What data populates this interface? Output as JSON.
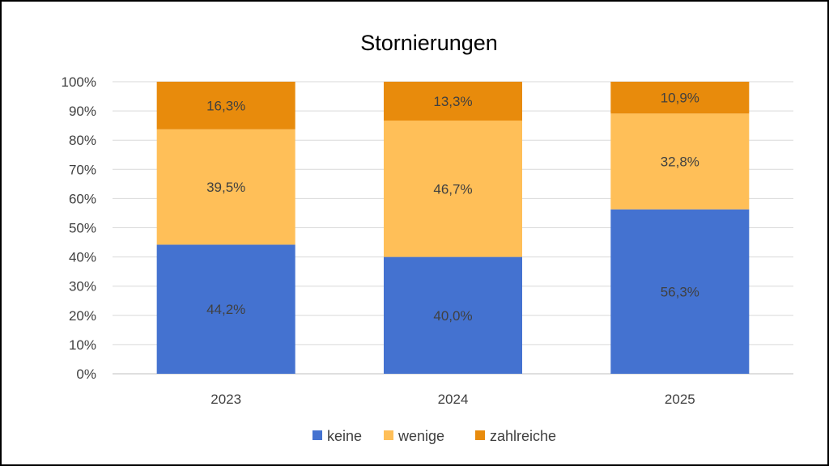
{
  "chart_data": {
    "type": "bar",
    "stacked": true,
    "title": "Stornierungen",
    "categories": [
      "2023",
      "2024",
      "2025"
    ],
    "series": [
      {
        "name": "keine",
        "color": "#4472D0",
        "values": [
          44.2,
          40.0,
          56.3
        ],
        "labels": [
          "44,2%",
          "40,0%",
          "56,3%"
        ]
      },
      {
        "name": "wenige",
        "color": "#FFBF58",
        "values": [
          39.5,
          46.7,
          32.8
        ],
        "labels": [
          "39,5%",
          "46,7%",
          "32,8%"
        ]
      },
      {
        "name": "zahlreiche",
        "color": "#E88B0C",
        "values": [
          16.3,
          13.3,
          10.9
        ],
        "labels": [
          "16,3%",
          "13,3%",
          "10,9%"
        ]
      }
    ],
    "yticks": [
      "0%",
      "10%",
      "20%",
      "30%",
      "40%",
      "50%",
      "60%",
      "70%",
      "80%",
      "90%",
      "100%"
    ],
    "ylim": [
      0,
      100
    ],
    "grid": true,
    "legend": "bottom",
    "xlabel": "",
    "ylabel": ""
  }
}
